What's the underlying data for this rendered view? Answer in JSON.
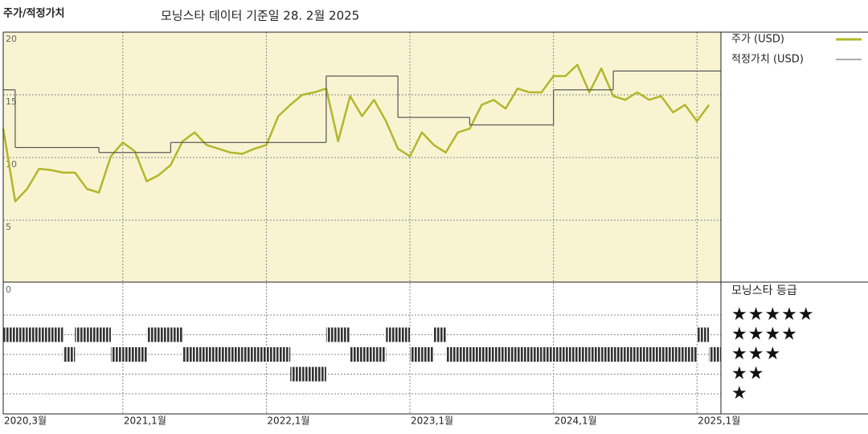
{
  "chart_data": [
    {
      "type": "line",
      "title": "주가/적정가치",
      "subtitle": "모닝스타 데이터 기준일 28. 2월 2025",
      "x": [
        "2020-03",
        "2020-04",
        "2020-05",
        "2020-06",
        "2020-07",
        "2020-08",
        "2020-09",
        "2020-10",
        "2020-11",
        "2020-12",
        "2021-01",
        "2021-02",
        "2021-03",
        "2021-04",
        "2021-05",
        "2021-06",
        "2021-07",
        "2021-08",
        "2021-09",
        "2021-10",
        "2021-11",
        "2021-12",
        "2022-01",
        "2022-02",
        "2022-03",
        "2022-04",
        "2022-05",
        "2022-06",
        "2022-07",
        "2022-08",
        "2022-09",
        "2022-10",
        "2022-11",
        "2022-12",
        "2023-01",
        "2023-02",
        "2023-03",
        "2023-04",
        "2023-05",
        "2023-06",
        "2023-07",
        "2023-08",
        "2023-09",
        "2023-10",
        "2023-11",
        "2023-12",
        "2024-01",
        "2024-02",
        "2024-03",
        "2024-04",
        "2024-05",
        "2024-06",
        "2024-07",
        "2024-08",
        "2024-09",
        "2024-10",
        "2024-11",
        "2024-12",
        "2025-01",
        "2025-02"
      ],
      "series": [
        {
          "name": "주가 (USD)",
          "color": "#b3b62c",
          "values": [
            12.3,
            6.5,
            7.5,
            9.1,
            9.0,
            8.8,
            8.8,
            7.5,
            7.2,
            10.1,
            11.2,
            10.5,
            8.1,
            8.6,
            9.4,
            11.3,
            12.0,
            11.0,
            10.7,
            10.4,
            10.3,
            10.7,
            11.0,
            13.3,
            14.2,
            15.0,
            15.2,
            15.5,
            11.3,
            14.9,
            13.3,
            14.6,
            12.9,
            10.7,
            10.1,
            12.0,
            11.0,
            10.4,
            12.0,
            12.3,
            14.2,
            14.6,
            13.9,
            15.5,
            15.2,
            15.2,
            16.5,
            16.5,
            17.4,
            15.2,
            17.1,
            14.9,
            14.6,
            15.2,
            14.6,
            14.9,
            13.6,
            14.2,
            12.9,
            14.2
          ]
        },
        {
          "name": "적정가치 (USD)",
          "color": "#555555",
          "step": true,
          "values": [
            15.4,
            10.8,
            10.8,
            10.8,
            10.8,
            10.8,
            10.8,
            10.8,
            10.4,
            10.4,
            10.4,
            10.4,
            10.4,
            10.4,
            11.2,
            11.2,
            11.2,
            11.2,
            11.2,
            11.2,
            11.2,
            11.2,
            11.2,
            11.2,
            11.2,
            11.2,
            11.2,
            16.5,
            16.5,
            16.5,
            16.5,
            16.5,
            16.5,
            13.2,
            13.2,
            13.2,
            13.2,
            13.2,
            13.2,
            12.6,
            12.6,
            12.6,
            12.6,
            12.6,
            12.6,
            12.6,
            15.4,
            15.4,
            15.4,
            15.4,
            15.4,
            16.9,
            16.9,
            16.9,
            16.9,
            16.9,
            16.9,
            16.9,
            16.9,
            16.9
          ]
        }
      ],
      "xlim": [
        "2020-03",
        "2025-03"
      ],
      "xticks": [
        {
          "value": "2020-03",
          "label": "2020,3월"
        },
        {
          "value": "2021-01",
          "label": "2021,1월"
        },
        {
          "value": "2022-01",
          "label": "2022,1월"
        },
        {
          "value": "2023-01",
          "label": "2023,1월"
        },
        {
          "value": "2024-01",
          "label": "2024,1월"
        },
        {
          "value": "2025-01",
          "label": "2025,1월"
        }
      ],
      "ylim": [
        0,
        20
      ],
      "yticks": [
        0,
        5,
        10,
        15,
        20
      ],
      "grid": true
    },
    {
      "type": "rating",
      "title": "모닝스타 등급",
      "color": "#333333",
      "x": [
        "2020-03",
        "2020-04",
        "2020-05",
        "2020-06",
        "2020-07",
        "2020-08",
        "2020-09",
        "2020-10",
        "2020-11",
        "2020-12",
        "2021-01",
        "2021-02",
        "2021-03",
        "2021-04",
        "2021-05",
        "2021-06",
        "2021-07",
        "2021-08",
        "2021-09",
        "2021-10",
        "2021-11",
        "2021-12",
        "2022-01",
        "2022-02",
        "2022-03",
        "2022-04",
        "2022-05",
        "2022-06",
        "2022-07",
        "2022-08",
        "2022-09",
        "2022-10",
        "2022-11",
        "2022-12",
        "2023-01",
        "2023-02",
        "2023-03",
        "2023-04",
        "2023-05",
        "2023-06",
        "2023-07",
        "2023-08",
        "2023-09",
        "2023-10",
        "2023-11",
        "2023-12",
        "2024-01",
        "2024-02",
        "2024-03",
        "2024-04",
        "2024-05",
        "2024-06",
        "2024-07",
        "2024-08",
        "2024-09",
        "2024-10",
        "2024-11",
        "2024-12",
        "2025-01",
        "2025-02"
      ],
      "values": [
        4,
        4,
        4,
        4,
        4,
        3,
        4,
        4,
        4,
        3,
        3,
        3,
        4,
        4,
        4,
        3,
        3,
        3,
        3,
        3,
        3,
        3,
        3,
        3,
        2,
        2,
        2,
        4,
        4,
        3,
        3,
        3,
        4,
        4,
        3,
        3,
        4,
        3,
        3,
        3,
        3,
        3,
        3,
        3,
        3,
        3,
        3,
        3,
        3,
        3,
        3,
        3,
        3,
        3,
        3,
        3,
        3,
        3,
        4,
        3
      ],
      "ylim": [
        0,
        6
      ],
      "yticks": [
        {
          "value": 5,
          "label": "★★★★★"
        },
        {
          "value": 4,
          "label": "★★★★"
        },
        {
          "value": 3,
          "label": "★★★"
        },
        {
          "value": 2,
          "label": "★★"
        },
        {
          "value": 1,
          "label": "★"
        }
      ]
    }
  ]
}
